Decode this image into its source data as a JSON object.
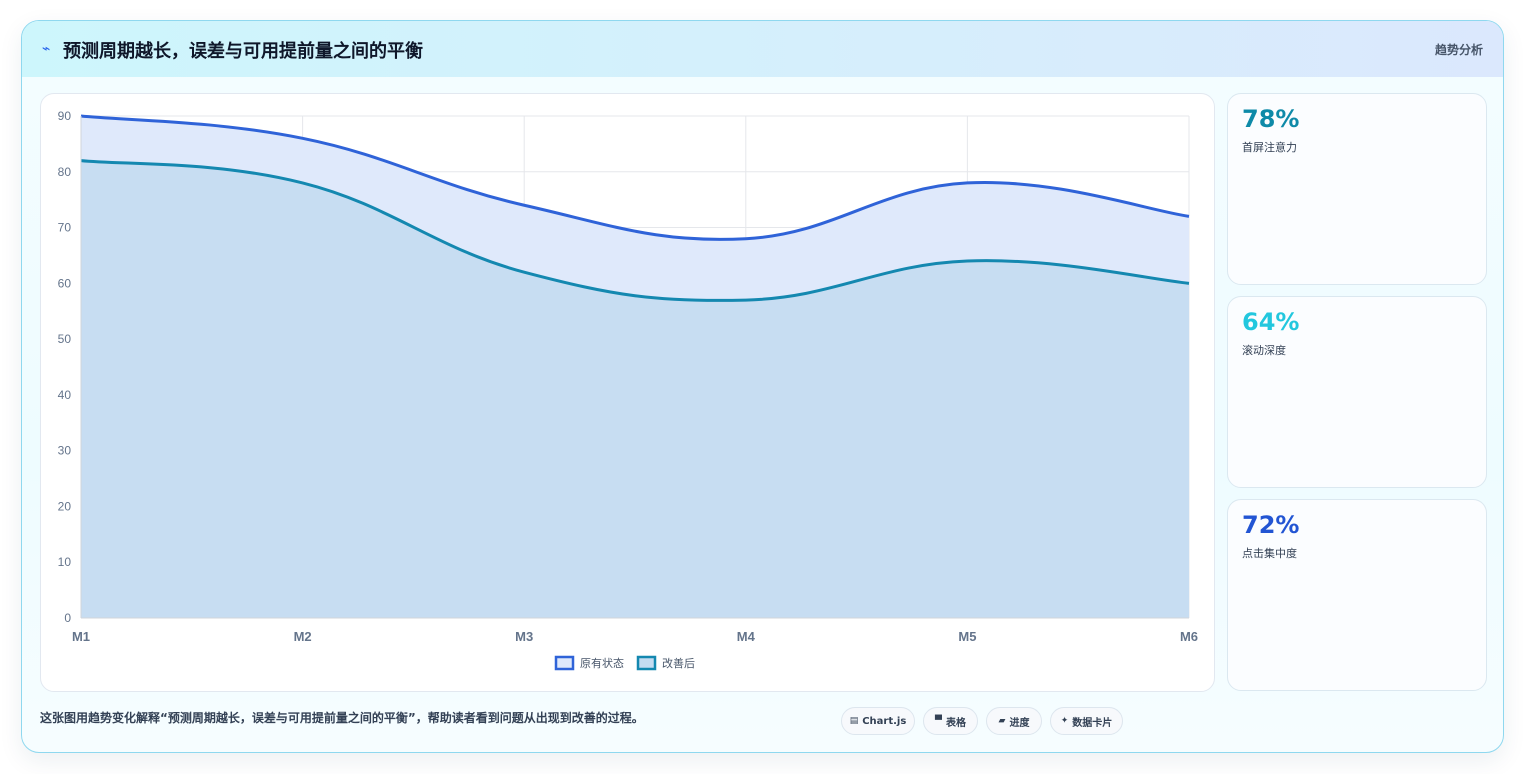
{
  "header": {
    "icon": "⌁",
    "title": "预测周期越长，误差与可用提前量之间的平衡",
    "tag": "趋势分析"
  },
  "chart_data": {
    "type": "area",
    "categories": [
      "M1",
      "M2",
      "M3",
      "M4",
      "M5",
      "M6"
    ],
    "series": [
      {
        "name": "原有状态",
        "values": [
          90,
          86,
          74,
          68,
          78,
          72
        ],
        "color": "#2f63d8",
        "fill": "#dfe9fb"
      },
      {
        "name": "改善后",
        "values": [
          82,
          78,
          62,
          57,
          64,
          60
        ],
        "color": "#1488b0",
        "fill": "#c5dcf1"
      }
    ],
    "ylim": [
      0,
      90
    ],
    "yticks": [
      0,
      10,
      20,
      30,
      40,
      50,
      60,
      70,
      80,
      90
    ],
    "grid": true,
    "legend_position": "bottom"
  },
  "kpis": [
    {
      "value": "78%",
      "label": "首屏注意力",
      "color": "#0e8aa8"
    },
    {
      "value": "64%",
      "label": "滚动深度",
      "color": "#22c7de"
    },
    {
      "value": "72%",
      "label": "点击集中度",
      "color": "#2255d3"
    }
  ],
  "footer": {
    "text": "这张图用趋势变化解释“预测周期越长，误差与可用提前量之间的平衡”，帮助读者看到问题从出现到改善的过程。",
    "chips": [
      {
        "icon": "▤",
        "label": "Chart.js"
      },
      {
        "icon": "▀",
        "label": "表格"
      },
      {
        "icon": "▰",
        "label": "进度"
      },
      {
        "icon": "✦",
        "label": "数据卡片"
      }
    ]
  }
}
